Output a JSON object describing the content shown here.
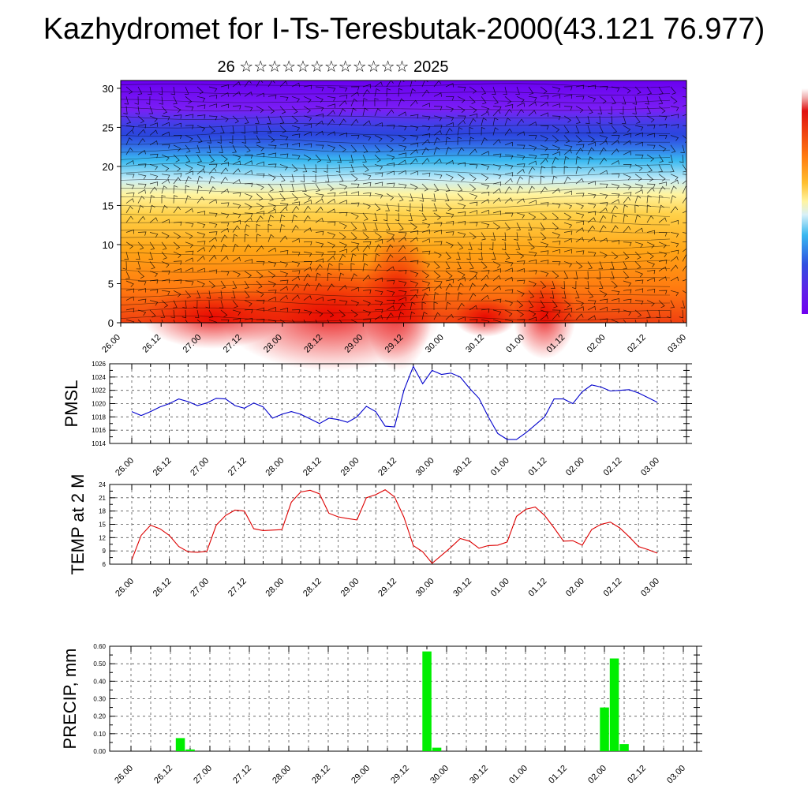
{
  "title": "Kazhydromet for I-Ts-Teresbutak-2000(43.121 76.977)",
  "subtitle": "26 ☆☆☆☆☆☆☆☆☆☆☆☆ 2025",
  "time_labels": [
    "26.00",
    "26.12",
    "27.00",
    "27.12",
    "28.00",
    "28.12",
    "29.00",
    "29.12",
    "30.00",
    "30.12",
    "01.00",
    "01.12",
    "02.00",
    "02.12",
    "03.00"
  ],
  "chart_data": [
    {
      "type": "heatmap",
      "name": "cross-section",
      "x_ticks": [
        "26.00",
        "26.12",
        "27.00",
        "27.12",
        "28.00",
        "28.12",
        "29.00",
        "29.12",
        "30.00",
        "30.12",
        "01.00",
        "01.12",
        "02.00",
        "02.12",
        "03.00"
      ],
      "y_ticks": [
        0,
        5,
        10,
        15,
        20,
        25,
        30
      ],
      "ylim": [
        0,
        31
      ],
      "colorbar": "rainbow (red high, purple low)",
      "overlay": "wind barbs"
    },
    {
      "type": "line",
      "ylabel": "PMSL",
      "color": "#0000cc",
      "ylim": [
        1014,
        1026
      ],
      "y_ticks": [
        1014,
        1016,
        1018,
        1020,
        1022,
        1024,
        1026
      ],
      "x_ticks": [
        "26.00",
        "26.12",
        "27.00",
        "27.12",
        "28.00",
        "28.12",
        "29.00",
        "29.12",
        "30.00",
        "30.12",
        "01.00",
        "01.12",
        "02.00",
        "02.12",
        "03.00"
      ],
      "values": [
        1018.8,
        1018.2,
        1018.8,
        1019.5,
        1020.0,
        1020.7,
        1020.3,
        1019.7,
        1020.1,
        1020.8,
        1020.7,
        1019.7,
        1019.3,
        1020.1,
        1019.5,
        1017.8,
        1018.4,
        1018.8,
        1018.4,
        1017.7,
        1017.0,
        1017.8,
        1017.6,
        1017.2,
        1018.0,
        1019.6,
        1018.8,
        1016.6,
        1016.5,
        1022.0,
        1025.6,
        1023.0,
        1025.0,
        1024.4,
        1024.6,
        1024.0,
        1022.3,
        1020.8,
        1018.0,
        1015.5,
        1014.6,
        1014.6,
        1015.6,
        1016.8,
        1018.0,
        1020.7,
        1020.7,
        1020.0,
        1021.8,
        1022.8,
        1022.5,
        1021.9,
        1022.0,
        1022.1,
        1021.6,
        1020.9,
        1020.2
      ]
    },
    {
      "type": "line",
      "ylabel": "TEMP at 2 M",
      "color": "#dd0000",
      "ylim": [
        6,
        24
      ],
      "y_ticks": [
        6,
        9,
        12,
        15,
        18,
        21,
        24
      ],
      "x_ticks": [
        "26.00",
        "26.12",
        "27.00",
        "27.12",
        "28.00",
        "28.12",
        "29.00",
        "29.12",
        "30.00",
        "30.12",
        "01.00",
        "01.12",
        "02.00",
        "02.12",
        "03.00"
      ],
      "values": [
        7.0,
        12.5,
        14.8,
        14.0,
        12.5,
        10.0,
        8.8,
        8.7,
        8.9,
        14.8,
        17.0,
        18.2,
        18.0,
        14.0,
        13.6,
        13.7,
        13.8,
        20.0,
        22.3,
        22.7,
        21.9,
        17.5,
        16.7,
        16.3,
        16.0,
        21.0,
        21.7,
        22.8,
        21.2,
        16.6,
        10.2,
        8.8,
        6.2,
        8.0,
        9.8,
        11.8,
        11.2,
        9.6,
        10.2,
        10.3,
        11.0,
        16.8,
        18.4,
        18.9,
        17.0,
        14.2,
        11.2,
        11.3,
        10.3,
        13.8,
        15.0,
        15.5,
        14.2,
        12.2,
        10.0,
        9.3,
        8.5
      ]
    },
    {
      "type": "bar",
      "ylabel": "PRECIP, mm",
      "color": "#00ee00",
      "ylim": [
        0,
        0.6
      ],
      "y_ticks": [
        "0.00",
        "0.10",
        "0.20",
        "0.30",
        "0.40",
        "0.50",
        "0.60"
      ],
      "x_ticks": [
        "26.00",
        "26.12",
        "27.00",
        "27.12",
        "28.00",
        "28.12",
        "29.00",
        "29.12",
        "30.00",
        "30.12",
        "01.00",
        "01.12",
        "02.00",
        "02.12",
        "03.00"
      ],
      "values": [
        0,
        0,
        0,
        0,
        0,
        0.075,
        0.01,
        0,
        0,
        0,
        0,
        0,
        0,
        0,
        0,
        0,
        0,
        0,
        0,
        0,
        0,
        0,
        0,
        0,
        0,
        0,
        0,
        0,
        0,
        0,
        0.57,
        0.02,
        0,
        0,
        0,
        0,
        0,
        0,
        0,
        0,
        0,
        0,
        0,
        0,
        0,
        0,
        0,
        0,
        0.25,
        0.53,
        0.04,
        0,
        0,
        0,
        0,
        0,
        0
      ]
    }
  ]
}
